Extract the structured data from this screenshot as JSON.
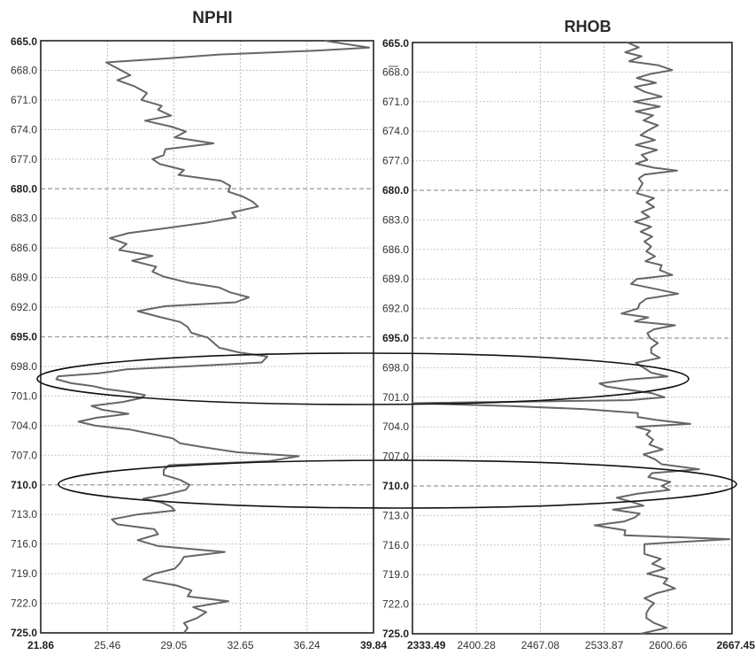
{
  "chart_data": [
    {
      "type": "line",
      "title": "NPHI",
      "orientation": "depth-vertical",
      "x_range": [
        21.86,
        39.84
      ],
      "x_ticks": [
        "21.86",
        "25.46",
        "29.05",
        "32.65",
        "36.24",
        "39.84"
      ],
      "y_range": [
        665.0,
        725.0
      ],
      "y_inverted": true,
      "y_ticks": [
        "665.0",
        "668.0",
        "671.0",
        "674.0",
        "677.0",
        "680.0",
        "683.0",
        "686.0",
        "689.0",
        "692.0",
        "695.0",
        "698.0",
        "701.0",
        "704.0",
        "707.0",
        "710.0",
        "713.0",
        "716.0",
        "719.0",
        "722.0",
        "725.0"
      ],
      "bold_y_ticks": [
        "665.0",
        "680.0",
        "695.0",
        "710.0",
        "725.0"
      ],
      "bold_x_ticks": [
        "21.86",
        "39.84"
      ],
      "grid": true,
      "series": [
        {
          "depth": [
            665.0,
            665.7,
            666.0,
            666.4,
            666.8,
            667.2,
            667.9,
            668.5,
            669.0,
            669.6,
            670.3,
            671.0,
            671.6,
            672.0,
            672.6,
            673.1,
            673.7,
            674.2,
            674.8,
            675.4,
            676.0,
            676.6,
            677.0,
            677.5,
            678.1,
            678.6,
            679.2,
            679.7,
            680.3,
            680.8,
            681.3,
            681.8,
            682.4,
            682.9,
            683.4,
            684.0,
            684.5,
            685.0,
            685.6,
            686.2,
            686.8,
            687.3,
            687.9,
            688.4,
            688.9,
            689.5,
            690.0,
            690.5,
            691.0,
            691.5,
            691.9,
            692.4,
            692.9,
            693.5,
            694.0,
            694.6,
            695.1,
            695.6,
            696.1,
            696.6,
            697.0,
            697.6,
            698.0,
            698.3,
            698.7,
            699.0,
            699.3,
            699.7,
            700.0,
            700.3,
            700.6,
            700.9,
            701.2,
            701.6,
            702.0,
            702.4,
            702.8,
            703.2,
            703.6,
            704.0,
            704.4,
            704.9,
            705.3,
            705.8,
            706.2,
            706.7,
            707.1,
            707.6,
            708.0,
            708.5,
            709.0,
            709.5,
            710.0,
            710.5,
            711.0,
            711.4,
            711.8,
            712.2,
            712.6,
            713.0,
            713.5,
            714.0,
            714.5,
            715.0,
            715.6,
            716.2,
            716.8,
            717.3,
            717.9,
            718.5,
            719.0,
            719.6,
            720.2,
            720.7,
            721.3,
            721.8,
            722.4,
            722.9,
            723.5,
            724.0,
            724.5,
            725.0
          ],
          "values": [
            37.2,
            39.6,
            36.8,
            31.5,
            28.6,
            25.4,
            26.1,
            26.7,
            26.0,
            26.9,
            27.6,
            27.3,
            28.4,
            28.2,
            28.9,
            27.5,
            28.9,
            29.7,
            29.1,
            31.2,
            28.6,
            28.5,
            27.9,
            28.3,
            29.6,
            29.3,
            31.6,
            32.1,
            32.0,
            32.8,
            33.3,
            33.6,
            32.2,
            32.4,
            30.9,
            28.6,
            26.6,
            25.6,
            26.5,
            26.1,
            27.9,
            26.8,
            28.1,
            27.9,
            28.5,
            29.8,
            31.5,
            32.1,
            33.1,
            32.4,
            28.6,
            27.1,
            28.1,
            29.4,
            29.8,
            30.0,
            30.9,
            31.2,
            31.5,
            32.6,
            34.1,
            33.8,
            29.7,
            26.5,
            25.0,
            22.8,
            22.7,
            23.5,
            24.7,
            25.4,
            26.6,
            27.5,
            27.3,
            26.3,
            24.6,
            25.2,
            26.6,
            24.9,
            23.9,
            24.8,
            26.7,
            28.0,
            29.0,
            29.4,
            30.7,
            32.5,
            35.8,
            34.2,
            28.8,
            28.5,
            28.5,
            29.4,
            29.9,
            29.7,
            28.6,
            27.4,
            28.4,
            28.9,
            29.1,
            27.1,
            25.7,
            26.0,
            28.0,
            28.2,
            27.1,
            28.2,
            31.8,
            29.6,
            29.4,
            29.1,
            28.0,
            27.4,
            29.2,
            30.0,
            29.8,
            32.0,
            30.1,
            30.8,
            30.3,
            29.6,
            29.8,
            29.6
          ]
        }
      ]
    },
    {
      "type": "line",
      "title": "RHOB",
      "orientation": "depth-vertical",
      "x_range": [
        2333.49,
        2667.45
      ],
      "x_ticks": [
        "2333.49",
        "2400.28",
        "2467.08",
        "2533.87",
        "2600.66",
        "2667.45"
      ],
      "y_range": [
        665.0,
        725.0
      ],
      "y_inverted": true,
      "y_ticks": [
        "665.0",
        "668.0",
        "671.0",
        "674.0",
        "677.0",
        "680.0",
        "683.0",
        "686.0",
        "689.0",
        "692.0",
        "695.0",
        "698.0",
        "701.0",
        "704.0",
        "707.0",
        "710.0",
        "713.0",
        "716.0",
        "719.0",
        "722.0",
        "725.0"
      ],
      "bold_y_ticks": [
        "665.0",
        "680.0",
        "695.0",
        "710.0",
        "725.0"
      ],
      "bold_x_ticks": [
        "2333.49",
        "2667.45"
      ],
      "grid": true,
      "series": [
        {
          "depth": [
            665.0,
            665.5,
            666.0,
            666.4,
            666.9,
            667.3,
            667.8,
            668.2,
            668.6,
            669.1,
            669.5,
            670.0,
            670.5,
            671.0,
            671.5,
            672.0,
            672.4,
            672.9,
            673.4,
            673.9,
            674.4,
            674.9,
            675.4,
            675.9,
            676.4,
            676.9,
            677.3,
            677.7,
            678.0,
            678.4,
            678.8,
            679.3,
            679.8,
            680.3,
            680.8,
            681.2,
            681.7,
            682.2,
            682.7,
            683.2,
            683.7,
            684.2,
            684.7,
            685.2,
            685.7,
            686.2,
            686.7,
            687.2,
            687.6,
            688.1,
            688.6,
            689.0,
            689.5,
            690.0,
            690.5,
            691.0,
            691.5,
            692.0,
            692.5,
            692.9,
            693.3,
            693.7,
            694.1,
            694.5,
            695.0,
            695.5,
            696.0,
            696.5,
            697.0,
            697.5,
            698.0,
            698.5,
            698.9,
            699.2,
            699.6,
            699.9,
            700.2,
            700.6,
            701.0,
            701.3,
            701.6,
            701.9,
            702.2,
            702.6,
            703.0,
            703.3,
            703.7,
            704.0,
            704.4,
            704.8,
            705.3,
            705.8,
            706.3,
            706.8,
            707.3,
            707.8,
            708.3,
            708.7,
            709.1,
            709.6,
            710.0,
            710.4,
            710.8,
            711.2,
            711.6,
            712.0,
            712.4,
            712.8,
            713.2,
            713.6,
            714.0,
            714.5,
            715.0,
            715.4,
            715.9,
            716.4,
            716.9,
            717.4,
            717.9,
            718.4,
            718.9,
            719.4,
            719.9,
            720.4,
            720.9,
            721.4,
            721.9,
            722.4,
            722.9,
            723.4,
            723.9,
            724.4,
            725.0
          ],
          "values": [
            2558,
            2570,
            2556,
            2573,
            2560,
            2590,
            2605,
            2582,
            2568,
            2588,
            2566,
            2576,
            2594,
            2565,
            2592,
            2567,
            2585,
            2575,
            2590,
            2580,
            2572,
            2587,
            2567,
            2589,
            2573,
            2579,
            2567,
            2585,
            2610,
            2576,
            2570,
            2574,
            2571,
            2568,
            2586,
            2578,
            2586,
            2573,
            2581,
            2566,
            2583,
            2572,
            2584,
            2576,
            2583,
            2578,
            2587,
            2577,
            2594,
            2592,
            2605,
            2568,
            2562,
            2587,
            2611,
            2578,
            2571,
            2569,
            2552,
            2580,
            2566,
            2608,
            2586,
            2579,
            2582,
            2590,
            2583,
            2583,
            2592,
            2567,
            2575,
            2583,
            2600,
            2560,
            2529,
            2536,
            2556,
            2584,
            2597,
            2560,
            2333,
            2436,
            2514,
            2569,
            2569,
            2588,
            2624,
            2567,
            2582,
            2578,
            2585,
            2581,
            2595,
            2575,
            2587,
            2594,
            2633,
            2584,
            2580,
            2603,
            2594,
            2602,
            2568,
            2547,
            2562,
            2575,
            2543,
            2571,
            2566,
            2555,
            2524,
            2556,
            2555,
            2665,
            2576,
            2576,
            2576,
            2593,
            2584,
            2597,
            2579,
            2600,
            2596,
            2608,
            2588,
            2576,
            2586,
            2581,
            2578,
            2578,
            2586,
            2599,
            2572,
            2583,
            2593
          ]
        }
      ]
    }
  ]
}
